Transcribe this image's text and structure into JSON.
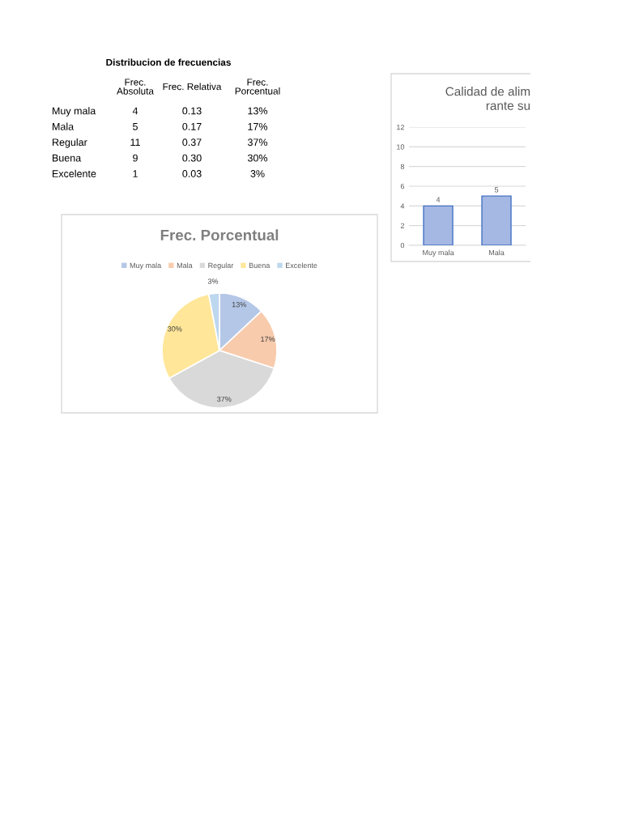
{
  "chart_data": [
    {
      "type": "other",
      "title": "Distribucion de frecuencias",
      "categories": [
        "Muy mala",
        "Mala",
        "Regular",
        "Buena",
        "Excelente"
      ],
      "series": [
        {
          "name": "Frec.\nAbsoluta",
          "values": [
            4,
            5,
            11,
            9,
            1
          ]
        },
        {
          "name": "Frec. Relativa",
          "values": [
            0.13,
            0.17,
            0.37,
            0.3,
            0.03
          ],
          "value_labels": [
            "0.13",
            "0.17",
            "0.37",
            "0.30",
            "0.03"
          ]
        },
        {
          "name": "Frec.\nPorcentual",
          "values": [
            13,
            17,
            37,
            30,
            3
          ],
          "value_labels": [
            "13%",
            "17%",
            "37%",
            "30%",
            "3%"
          ]
        }
      ],
      "data_labels": true
    },
    {
      "type": "bar",
      "title": "Calidad de alim\nrante su",
      "categories": [
        "Muy mala",
        "Mala"
      ],
      "values": [
        4,
        5
      ],
      "color": "#a5b8e3",
      "ylim": [
        0,
        12
      ],
      "yticks": [
        0,
        2,
        4,
        6,
        8,
        10,
        12
      ],
      "grid": "y",
      "data_labels": true
    },
    {
      "type": "pie",
      "title": "Frec. Porcentual",
      "categories": [
        "Muy mala",
        "Mala",
        "Regular",
        "Buena",
        "Excelente"
      ],
      "values": [
        13,
        17,
        37,
        30,
        3
      ],
      "colors": [
        "#b4c7e7",
        "#f8cbad",
        "#d9d9d9",
        "#ffe699",
        "#bdd7ee"
      ],
      "value_labels": [
        "13%",
        "17%",
        "37%",
        "30%",
        "3%"
      ],
      "legend": "top"
    }
  ]
}
